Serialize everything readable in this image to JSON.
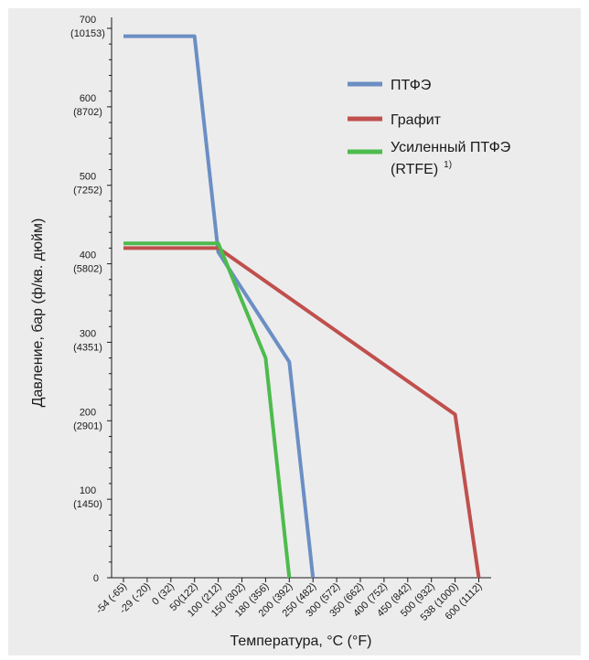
{
  "chart_data": {
    "type": "line",
    "xlabel": "Температура, °C (°F)",
    "ylabel": "Давление, бар (ф/кв. дюйм)",
    "x_categories": [
      "-54 (-65)",
      "-29 (-20)",
      "0 (32)",
      "50(122)",
      "100 (212)",
      "150 (302)",
      "180 (356)",
      "200 (392)",
      "250 (482)",
      "300 (572)",
      "350 (662)",
      "400 (752)",
      "450 (842)",
      "500 (932)",
      "538 (1000)",
      "600 (1112)"
    ],
    "y_ticks": [
      {
        "value": 0,
        "label": "0",
        "sub": ""
      },
      {
        "value": 100,
        "label": "100",
        "sub": "(1450)"
      },
      {
        "value": 200,
        "label": "200",
        "sub": "(2901)"
      },
      {
        "value": 300,
        "label": "300",
        "sub": "(4351)"
      },
      {
        "value": 400,
        "label": "400",
        "sub": "(5802)"
      },
      {
        "value": 500,
        "label": "500",
        "sub": "(7252)"
      },
      {
        "value": 600,
        "label": "600",
        "sub": "(8702)"
      },
      {
        "value": 700,
        "label": "700",
        "sub": "(10153)"
      }
    ],
    "ylim": [
      0,
      700
    ],
    "grid": false,
    "legend_position": "top-right",
    "series": [
      {
        "name": "ПТФЭ",
        "color": "#6b8ec4",
        "points": [
          {
            "x": "-54 (-65)",
            "y": 690
          },
          {
            "x": "50(122)",
            "y": 690
          },
          {
            "x": "100 (212)",
            "y": 415
          },
          {
            "x": "200 (392)",
            "y": 275
          },
          {
            "x": "250 (482)",
            "y": 0
          }
        ]
      },
      {
        "name": "Графит",
        "color": "#c0504d",
        "points": [
          {
            "x": "-54 (-65)",
            "y": 420
          },
          {
            "x": "100 (212)",
            "y": 420
          },
          {
            "x": "538 (1000)",
            "y": 208
          },
          {
            "x": "600 (1112)",
            "y": 0
          }
        ]
      },
      {
        "name": "Усиленный ПТФЭ (RTFE)",
        "legend_lines": [
          "Усиленный ПТФЭ",
          "(RTFE)"
        ],
        "legend_sup": "1)",
        "color": "#4dbb4d",
        "points": [
          {
            "x": "-54 (-65)",
            "y": 426
          },
          {
            "x": "100 (212)",
            "y": 426
          },
          {
            "x": "180 (356)",
            "y": 280
          },
          {
            "x": "200 (392)",
            "y": 0
          }
        ]
      }
    ]
  }
}
